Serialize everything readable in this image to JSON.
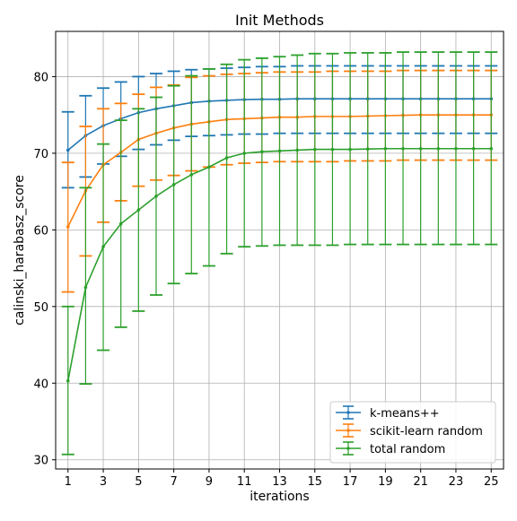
{
  "chart_data": {
    "type": "line",
    "title": "Init Methods",
    "xlabel": "iterations",
    "ylabel": "calinski_harabasz_score",
    "x": [
      1,
      2,
      3,
      4,
      5,
      6,
      7,
      8,
      9,
      10,
      11,
      12,
      13,
      14,
      15,
      16,
      17,
      18,
      19,
      20,
      21,
      22,
      23,
      24,
      25
    ],
    "xticks": [
      "1",
      "3",
      "5",
      "7",
      "9",
      "11",
      "13",
      "15",
      "17",
      "19",
      "21",
      "23",
      "25"
    ],
    "yticks": [
      "30",
      "40",
      "50",
      "60",
      "70",
      "80"
    ],
    "xlim": [
      0.3,
      25.7
    ],
    "ylim": [
      28.8,
      85.9
    ],
    "grid": true,
    "legend_position": "lower-right",
    "error_bars": true,
    "series": [
      {
        "name": "k-means++",
        "color": "#1f77b4",
        "values": [
          70.4,
          72.3,
          73.6,
          74.5,
          75.3,
          75.8,
          76.2,
          76.6,
          76.8,
          76.9,
          77.0,
          77.05,
          77.05,
          77.1,
          77.1,
          77.1,
          77.1,
          77.1,
          77.1,
          77.1,
          77.1,
          77.1,
          77.1,
          77.1,
          77.1
        ],
        "upper": [
          75.4,
          77.5,
          78.5,
          79.3,
          80.0,
          80.4,
          80.7,
          80.9,
          81.0,
          81.1,
          81.2,
          81.3,
          81.3,
          81.4,
          81.4,
          81.4,
          81.4,
          81.4,
          81.4,
          81.4,
          81.4,
          81.4,
          81.4,
          81.4,
          81.4
        ],
        "lower": [
          65.5,
          66.9,
          68.6,
          69.6,
          70.5,
          71.1,
          71.7,
          72.2,
          72.3,
          72.4,
          72.5,
          72.5,
          72.6,
          72.6,
          72.6,
          72.6,
          72.6,
          72.6,
          72.6,
          72.6,
          72.6,
          72.6,
          72.6,
          72.6,
          72.6
        ]
      },
      {
        "name": "scikit-learn random",
        "color": "#ff7f0e",
        "values": [
          60.4,
          65.1,
          68.5,
          70.1,
          71.8,
          72.6,
          73.3,
          73.8,
          74.1,
          74.4,
          74.5,
          74.6,
          74.7,
          74.7,
          74.8,
          74.8,
          74.8,
          74.85,
          74.9,
          74.95,
          75.0,
          75.0,
          75.0,
          75.0,
          75.0
        ],
        "upper": [
          68.8,
          73.5,
          75.8,
          76.5,
          77.7,
          78.6,
          78.9,
          79.9,
          80.1,
          80.3,
          80.4,
          80.5,
          80.6,
          80.6,
          80.6,
          80.7,
          80.7,
          80.7,
          80.7,
          80.8,
          80.8,
          80.8,
          80.8,
          80.8,
          80.8
        ],
        "lower": [
          51.9,
          56.6,
          61.0,
          63.8,
          65.7,
          66.5,
          67.1,
          67.7,
          68.2,
          68.5,
          68.7,
          68.8,
          68.9,
          68.9,
          68.9,
          68.9,
          69.0,
          69.0,
          69.0,
          69.1,
          69.1,
          69.1,
          69.1,
          69.1,
          69.1
        ]
      },
      {
        "name": "total random",
        "color": "#2ca02c",
        "values": [
          40.3,
          52.5,
          57.8,
          60.8,
          62.6,
          64.4,
          65.9,
          67.2,
          68.2,
          69.4,
          70.0,
          70.2,
          70.3,
          70.4,
          70.5,
          70.5,
          70.5,
          70.55,
          70.6,
          70.6,
          70.6,
          70.6,
          70.6,
          70.6,
          70.6
        ],
        "upper": [
          50.0,
          65.5,
          71.2,
          74.3,
          75.8,
          77.3,
          78.8,
          80.1,
          81.0,
          81.6,
          82.2,
          82.4,
          82.6,
          82.8,
          83.0,
          83.0,
          83.1,
          83.1,
          83.1,
          83.2,
          83.2,
          83.2,
          83.2,
          83.2,
          83.2
        ],
        "lower": [
          30.7,
          39.9,
          44.3,
          47.3,
          49.4,
          51.5,
          53.0,
          54.3,
          55.3,
          56.9,
          57.8,
          57.9,
          58.0,
          58.0,
          58.0,
          58.0,
          58.1,
          58.1,
          58.1,
          58.1,
          58.1,
          58.1,
          58.1,
          58.1,
          58.1
        ]
      }
    ]
  }
}
